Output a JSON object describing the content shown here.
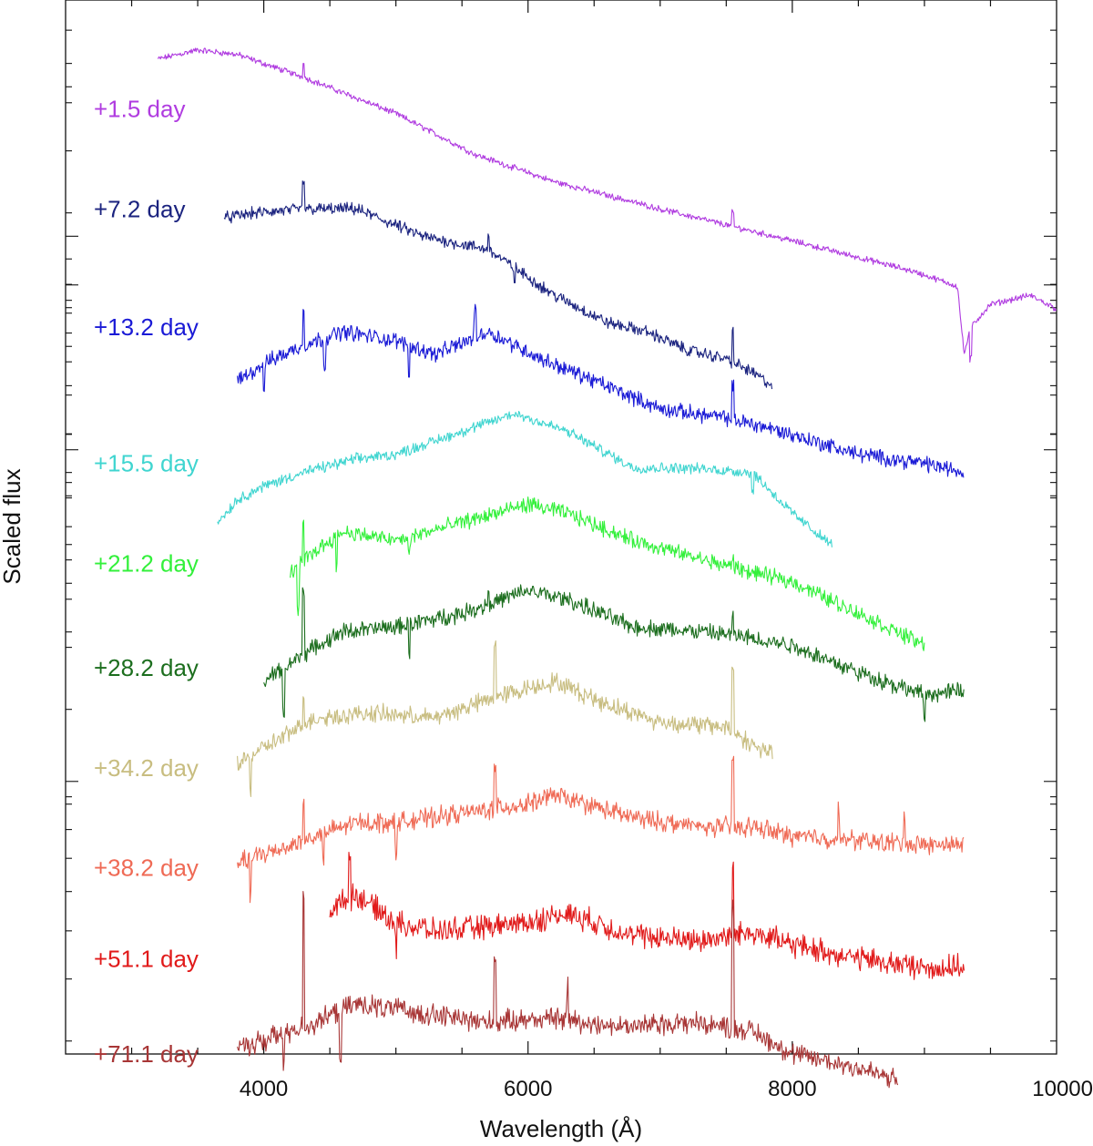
{
  "chart_data": {
    "type": "line",
    "xlabel": "Wavelength (Å)",
    "ylabel": "Scaled flux",
    "xlim": [
      2500,
      10000
    ],
    "x_ticks": [
      4000,
      6000,
      8000,
      10000
    ],
    "x_minor_step": 500,
    "ylim": [
      0,
      11.6
    ],
    "y_log_decades": [
      3.0,
      6.65,
      9.0
    ],
    "y_tick_labels": "none",
    "grid": false,
    "legend": "inline-left",
    "series": [
      {
        "name": "+1.5 day",
        "color": "#b03ce0",
        "noise": 0.05,
        "label_y": 10.4,
        "x": [
          3200,
          3500,
          3800,
          4300,
          5000,
          5600,
          6200,
          7000,
          8000,
          8900,
          9250,
          9300,
          9350,
          9500,
          9800,
          10000
        ],
        "y": [
          10.95,
          11.05,
          11.0,
          10.75,
          10.35,
          9.9,
          9.6,
          9.3,
          8.95,
          8.62,
          8.45,
          7.7,
          8.0,
          8.25,
          8.35,
          8.2
        ],
        "spikes": [
          [
            4300,
            0.18
          ],
          [
            7550,
            0.15
          ],
          [
            9350,
            -0.35
          ]
        ]
      },
      {
        "name": "+7.2 day",
        "color": "#1b237f",
        "noise": 0.1,
        "label_y": 9.3,
        "x": [
          3700,
          3900,
          4300,
          4700,
          5200,
          5700,
          6200,
          6600,
          6900,
          7200,
          7500,
          7700,
          7850
        ],
        "y": [
          9.2,
          9.25,
          9.3,
          9.3,
          9.0,
          8.85,
          8.35,
          8.05,
          7.95,
          7.75,
          7.65,
          7.5,
          7.35
        ],
        "spikes": [
          [
            4300,
            0.3
          ],
          [
            5700,
            0.2
          ],
          [
            7550,
            0.35
          ],
          [
            5900,
            -0.15
          ]
        ]
      },
      {
        "name": "+13.2 day",
        "color": "#1a1ad6",
        "noise": 0.13,
        "label_y": 8.0,
        "x": [
          3800,
          4000,
          4300,
          4600,
          5000,
          5300,
          5700,
          6100,
          6600,
          7000,
          7500,
          7800,
          8500,
          9000,
          9300
        ],
        "y": [
          7.4,
          7.6,
          7.8,
          7.95,
          7.85,
          7.7,
          7.95,
          7.65,
          7.35,
          7.1,
          7.0,
          6.9,
          6.6,
          6.5,
          6.4
        ],
        "spikes": [
          [
            4300,
            0.4
          ],
          [
            5600,
            0.3
          ],
          [
            7550,
            0.35
          ],
          [
            5100,
            -0.35
          ],
          [
            4460,
            -0.3
          ],
          [
            4000,
            -0.3
          ]
        ]
      },
      {
        "name": "+15.5 day",
        "color": "#40d5d0",
        "noise": 0.09,
        "label_y": 6.5,
        "x": [
          3650,
          3800,
          4000,
          4300,
          4700,
          5000,
          5400,
          5900,
          6300,
          6800,
          7200,
          7700,
          8000,
          8300
        ],
        "y": [
          5.85,
          6.1,
          6.25,
          6.4,
          6.55,
          6.6,
          6.8,
          7.05,
          6.85,
          6.45,
          6.45,
          6.4,
          5.95,
          5.6
        ],
        "spikes": [
          [
            7700,
            -0.2
          ]
        ]
      },
      {
        "name": "+21.2 day",
        "color": "#33f03b",
        "noise": 0.13,
        "label_y": 5.4,
        "x": [
          4200,
          4400,
          4600,
          5000,
          5500,
          6000,
          6300,
          6800,
          7300,
          7700,
          8000,
          8500,
          9000
        ],
        "y": [
          5.3,
          5.55,
          5.75,
          5.65,
          5.85,
          6.05,
          5.95,
          5.65,
          5.45,
          5.3,
          5.2,
          4.85,
          4.5
        ],
        "spikes": [
          [
            4300,
            0.4
          ],
          [
            7550,
            0.15
          ],
          [
            4260,
            -0.5
          ],
          [
            4550,
            -0.35
          ],
          [
            5100,
            -0.2
          ]
        ]
      },
      {
        "name": "+28.2 day",
        "color": "#1c6e1e",
        "noise": 0.14,
        "label_y": 4.25,
        "x": [
          4000,
          4300,
          4600,
          5000,
          5500,
          6000,
          6300,
          6800,
          7300,
          7600,
          8000,
          8500,
          9000,
          9300
        ],
        "y": [
          4.1,
          4.4,
          4.65,
          4.7,
          4.85,
          5.1,
          5.0,
          4.7,
          4.65,
          4.6,
          4.5,
          4.2,
          3.95,
          4.0
        ],
        "spikes": [
          [
            4300,
            0.7
          ],
          [
            7550,
            0.2
          ],
          [
            5700,
            0.15
          ],
          [
            4150,
            -0.5
          ],
          [
            5100,
            -0.3
          ],
          [
            9000,
            -0.3
          ]
        ]
      },
      {
        "name": "+34.2 day",
        "color": "#c8bd80",
        "noise": 0.15,
        "label_y": 3.15,
        "x": [
          3800,
          4100,
          4400,
          4800,
          5300,
          5800,
          6200,
          6600,
          7000,
          7500,
          7700,
          7850
        ],
        "y": [
          3.2,
          3.45,
          3.7,
          3.75,
          3.7,
          3.95,
          4.1,
          3.85,
          3.65,
          3.6,
          3.4,
          3.3
        ],
        "spikes": [
          [
            4300,
            0.4
          ],
          [
            5750,
            0.6
          ],
          [
            7550,
            0.7
          ],
          [
            3900,
            -0.4
          ]
        ]
      },
      {
        "name": "+38.2 day",
        "color": "#ef6a55",
        "noise": 0.16,
        "label_y": 2.05,
        "x": [
          3800,
          4000,
          4300,
          4700,
          5000,
          5500,
          6000,
          6200,
          6800,
          7300,
          7700,
          8000,
          8500,
          9000,
          9300
        ],
        "y": [
          2.1,
          2.2,
          2.35,
          2.55,
          2.55,
          2.65,
          2.75,
          2.85,
          2.6,
          2.5,
          2.5,
          2.4,
          2.35,
          2.3,
          2.3
        ],
        "spikes": [
          [
            4300,
            0.4
          ],
          [
            5750,
            0.45
          ],
          [
            7550,
            0.7
          ],
          [
            8350,
            0.3
          ],
          [
            8850,
            0.35
          ],
          [
            3900,
            -0.4
          ],
          [
            4450,
            -0.35
          ],
          [
            5000,
            -0.3
          ]
        ]
      },
      {
        "name": "+51.1 day",
        "color": "#e11a1a",
        "noise": 0.2,
        "label_y": 1.05,
        "x": [
          4500,
          4700,
          5000,
          5300,
          5700,
          6000,
          6300,
          6800,
          7300,
          7700,
          8000,
          8500,
          9000,
          9300
        ],
        "y": [
          1.6,
          1.75,
          1.45,
          1.35,
          1.4,
          1.45,
          1.55,
          1.3,
          1.25,
          1.35,
          1.2,
          1.05,
          0.95,
          0.95
        ],
        "spikes": [
          [
            4650,
            0.5
          ],
          [
            7550,
            0.7
          ],
          [
            5000,
            -0.3
          ]
        ]
      },
      {
        "name": "+71.1 day",
        "color": "#a83636",
        "noise": 0.18,
        "label_y": 0.0,
        "x": [
          3800,
          4100,
          4400,
          4700,
          5200,
          5700,
          6200,
          6700,
          7200,
          7500,
          7700,
          8000,
          8500,
          8800
        ],
        "y": [
          0.05,
          0.2,
          0.35,
          0.55,
          0.45,
          0.35,
          0.4,
          0.3,
          0.35,
          0.3,
          0.25,
          0.0,
          -0.15,
          -0.3
        ],
        "spikes": [
          [
            4300,
            1.5
          ],
          [
            5750,
            0.7
          ],
          [
            6300,
            0.4
          ],
          [
            7550,
            1.3
          ],
          [
            4580,
            -0.5
          ],
          [
            4150,
            -0.4
          ],
          [
            8820,
            -1.3
          ]
        ]
      }
    ]
  }
}
